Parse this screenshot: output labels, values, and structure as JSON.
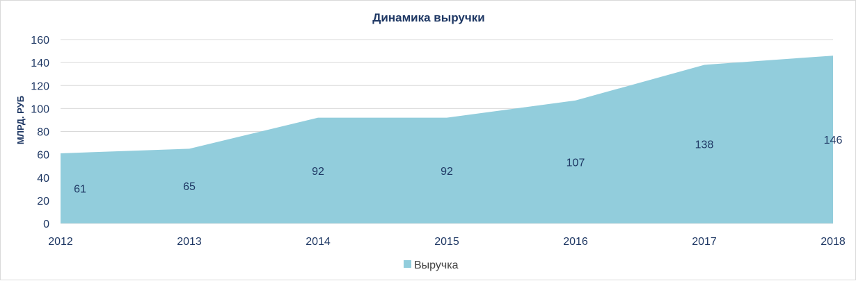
{
  "chart_data": {
    "type": "area",
    "title": "Динамика выручки",
    "xlabel": "",
    "ylabel": "МЛРД. РУБ",
    "categories": [
      "2012",
      "2013",
      "2014",
      "2015",
      "2016",
      "2017",
      "2018"
    ],
    "series": [
      {
        "name": "Выручка",
        "values": [
          61,
          65,
          92,
          92,
          107,
          138,
          146
        ],
        "color": "#92cddc"
      }
    ],
    "data_labels": [
      "61",
      "65",
      "92",
      "92",
      "107",
      "138",
      "146"
    ],
    "ylim": [
      0,
      160
    ],
    "yticks": [
      "0",
      "20",
      "40",
      "60",
      "80",
      "100",
      "120",
      "140",
      "160"
    ],
    "grid": true,
    "legend_position": "bottom",
    "colors": {
      "text": "#1f3864",
      "grid": "#d9d9d9"
    }
  }
}
